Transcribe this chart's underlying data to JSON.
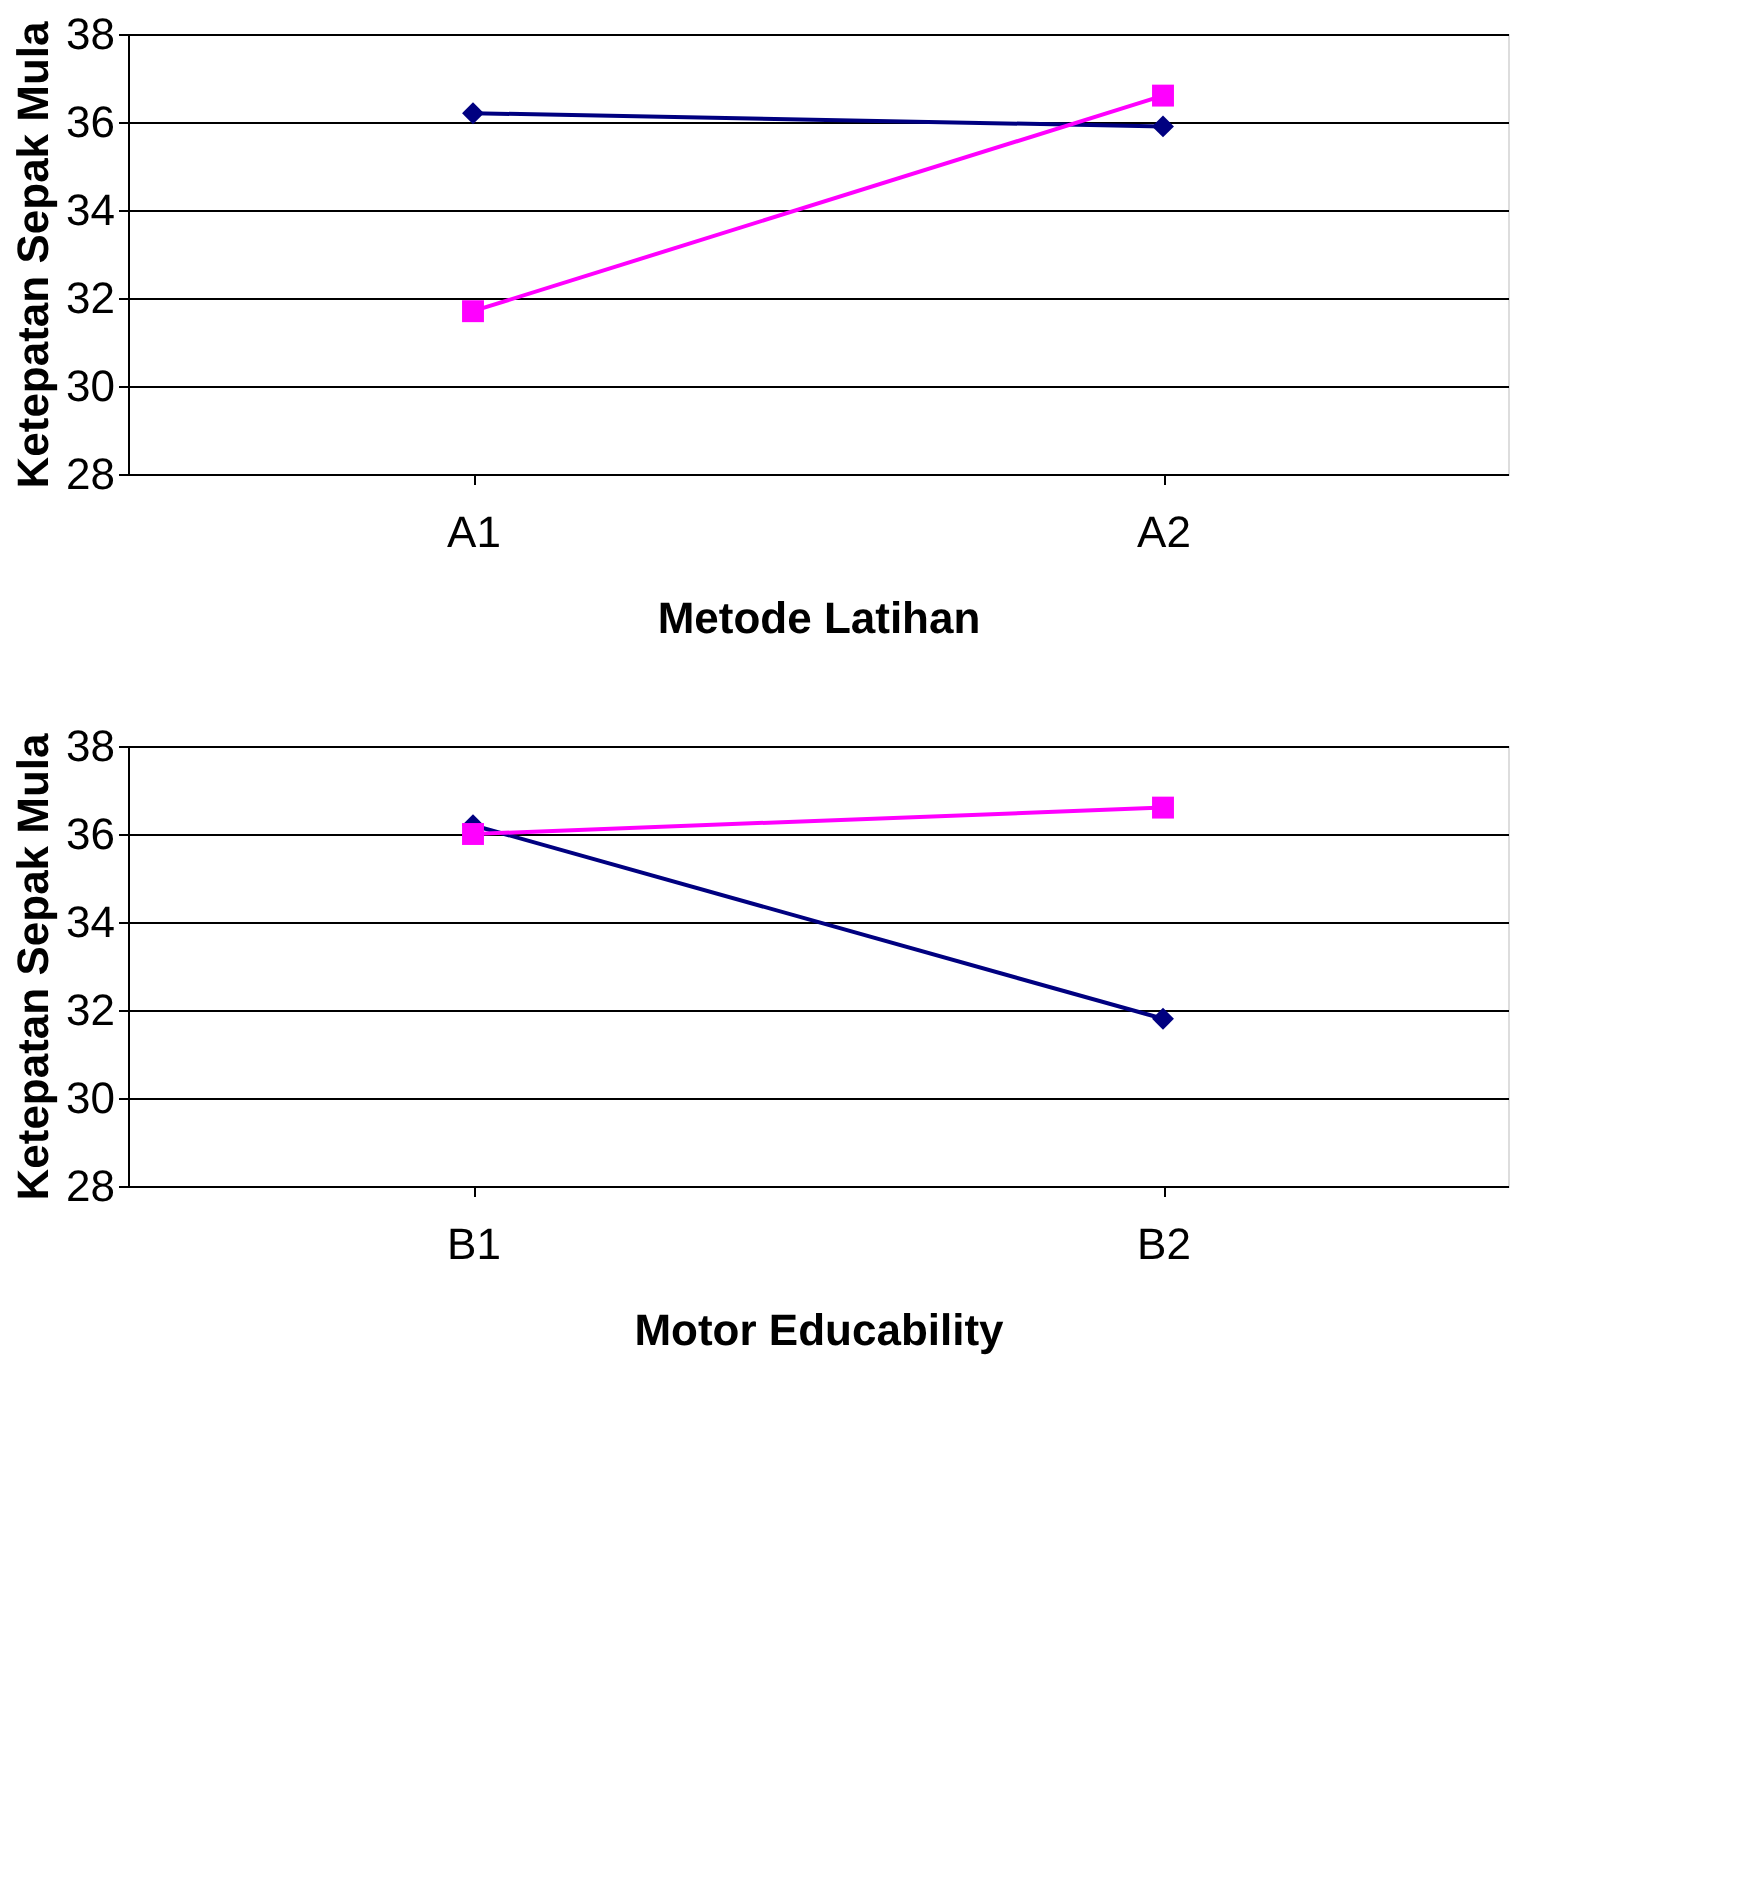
{
  "chart_data": [
    {
      "type": "line",
      "xlabel": "Metode Latihan",
      "ylabel": "Ketepatan Sepak Mula",
      "categories": [
        "A1",
        "A2"
      ],
      "ylim": [
        28,
        38
      ],
      "yticks": [
        28,
        30,
        32,
        34,
        36,
        38
      ],
      "grid": "y",
      "series": [
        {
          "color": "#000080",
          "values": [
            36.2,
            35.9
          ],
          "marker": "diamond"
        },
        {
          "color": "#ff00ff",
          "values": [
            31.7,
            36.6
          ],
          "marker": "square"
        }
      ]
    },
    {
      "type": "line",
      "xlabel": "Motor Educability",
      "ylabel": "Ketepatan Sepak Mula",
      "categories": [
        "B1",
        "B2"
      ],
      "ylim": [
        28,
        38
      ],
      "yticks": [
        28,
        30,
        32,
        34,
        36,
        38
      ],
      "grid": "y",
      "series": [
        {
          "color": "#000080",
          "values": [
            36.2,
            31.8
          ],
          "marker": "diamond"
        },
        {
          "color": "#ff00ff",
          "values": [
            36.0,
            36.6
          ],
          "marker": "square"
        }
      ]
    }
  ]
}
